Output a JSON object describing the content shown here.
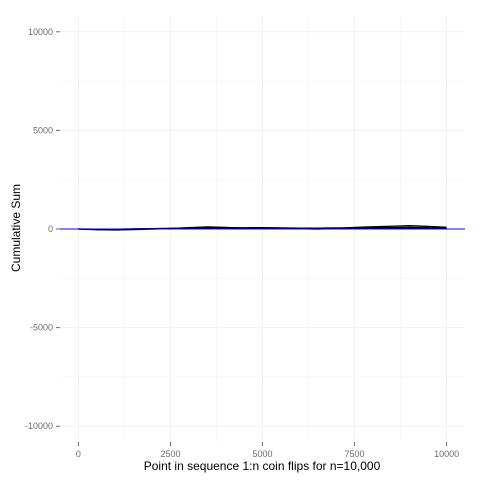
{
  "chart_data": {
    "type": "line",
    "title": "",
    "xlabel": "Point in sequence 1:n coin flips for n=10,000",
    "ylabel": "Cumulative Sum",
    "xlim": [
      -500,
      10500
    ],
    "ylim": [
      -10800,
      10800
    ],
    "x_ticks": [
      0,
      2500,
      5000,
      7500,
      10000
    ],
    "y_ticks": [
      -10000,
      -5000,
      0,
      5000,
      10000
    ],
    "grid": true,
    "reference_line": {
      "y": 0,
      "color": "#0000ff"
    },
    "series": [
      {
        "color": "#000000",
        "x": [
          0,
          500,
          1000,
          1500,
          2000,
          2500,
          3000,
          3500,
          4000,
          4500,
          5000,
          5500,
          6000,
          6500,
          7000,
          7500,
          8000,
          8500,
          9000,
          9500,
          10000
        ],
        "y": [
          0,
          -25,
          -15,
          10,
          20,
          35,
          50,
          40,
          30,
          45,
          50,
          40,
          25,
          20,
          35,
          60,
          80,
          75,
          85,
          60,
          40
        ]
      },
      {
        "color": "#000000",
        "x": [
          0,
          500,
          1000,
          1500,
          2000,
          2500,
          3000,
          3500,
          4000,
          4500,
          5000,
          5500,
          6000,
          6500,
          7000,
          7500,
          8000,
          8500,
          9000,
          9500,
          10000
        ],
        "y": [
          0,
          -35,
          -50,
          -30,
          -5,
          25,
          70,
          105,
          80,
          45,
          20,
          35,
          15,
          -5,
          30,
          80,
          110,
          140,
          170,
          130,
          90
        ]
      },
      {
        "color": "#000000",
        "x": [
          0,
          500,
          1000,
          1500,
          2000,
          2500,
          3000,
          3500,
          4000,
          4500,
          5000,
          5500,
          6000,
          6500,
          7000,
          7500,
          8000,
          8500,
          9000,
          9500,
          10000
        ],
        "y": [
          0,
          -10,
          -30,
          -20,
          5,
          15,
          25,
          55,
          65,
          60,
          70,
          55,
          45,
          40,
          55,
          45,
          30,
          45,
          60,
          35,
          20
        ]
      }
    ]
  }
}
